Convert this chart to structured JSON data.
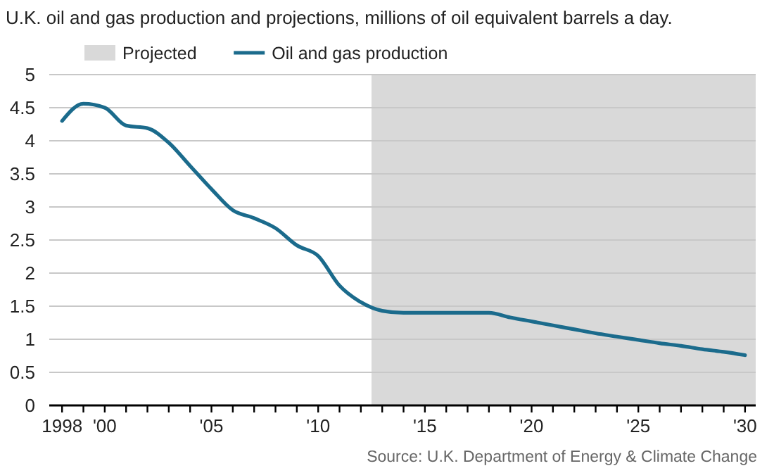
{
  "chart_data": {
    "type": "line",
    "title": "U.K. oil and gas production and projections, millions of oil equivalent barrels a day.",
    "x": [
      1998,
      1999,
      2000,
      2001,
      2002,
      2003,
      2004,
      2005,
      2006,
      2007,
      2008,
      2009,
      2010,
      2011,
      2012,
      2013,
      2014,
      2015,
      2016,
      2017,
      2018,
      2019,
      2020,
      2021,
      2022,
      2023,
      2024,
      2025,
      2026,
      2027,
      2028,
      2029,
      2030
    ],
    "series": [
      {
        "name": "Oil and gas production",
        "color": "#1b6b8c",
        "values": [
          4.3,
          4.56,
          4.5,
          4.23,
          4.19,
          3.97,
          3.62,
          3.27,
          2.95,
          2.83,
          2.68,
          2.42,
          2.26,
          1.81,
          1.56,
          1.43,
          1.4,
          1.4,
          1.4,
          1.4,
          1.4,
          1.33,
          1.27,
          1.21,
          1.15,
          1.09,
          1.04,
          0.99,
          0.94,
          0.9,
          0.85,
          0.81,
          0.76
        ]
      }
    ],
    "bands": [
      {
        "axis": "x",
        "from": 2012.5,
        "to": 2030.5,
        "label": "Projected",
        "color": "#d9d9d9"
      }
    ],
    "xlim": [
      1997.4,
      2030.5
    ],
    "xticks": [
      {
        "value": 1998,
        "label": "1998"
      },
      {
        "value": 1999,
        "label": null
      },
      {
        "value": 2000,
        "label": "'00"
      },
      {
        "value": 2001,
        "label": null
      },
      {
        "value": 2002,
        "label": null
      },
      {
        "value": 2003,
        "label": null
      },
      {
        "value": 2004,
        "label": null
      },
      {
        "value": 2005,
        "label": "'05"
      },
      {
        "value": 2006,
        "label": null
      },
      {
        "value": 2007,
        "label": null
      },
      {
        "value": 2008,
        "label": null
      },
      {
        "value": 2009,
        "label": null
      },
      {
        "value": 2010,
        "label": "'10"
      },
      {
        "value": 2011,
        "label": null
      },
      {
        "value": 2012,
        "label": null
      },
      {
        "value": 2013,
        "label": null
      },
      {
        "value": 2014,
        "label": null
      },
      {
        "value": 2015,
        "label": "'15"
      },
      {
        "value": 2016,
        "label": null
      },
      {
        "value": 2017,
        "label": null
      },
      {
        "value": 2018,
        "label": null
      },
      {
        "value": 2019,
        "label": null
      },
      {
        "value": 2020,
        "label": "'20"
      },
      {
        "value": 2021,
        "label": null
      },
      {
        "value": 2022,
        "label": null
      },
      {
        "value": 2023,
        "label": null
      },
      {
        "value": 2024,
        "label": null
      },
      {
        "value": 2025,
        "label": "'25"
      },
      {
        "value": 2026,
        "label": null
      },
      {
        "value": 2027,
        "label": null
      },
      {
        "value": 2028,
        "label": null
      },
      {
        "value": 2029,
        "label": null
      },
      {
        "value": 2030,
        "label": "'30"
      }
    ],
    "ylim": [
      0,
      5
    ],
    "yticks": [
      0,
      0.5,
      1,
      1.5,
      2,
      2.5,
      3,
      3.5,
      4,
      4.5,
      5
    ],
    "grid": "y",
    "legend": "top left",
    "marker": "none",
    "line_style": "solid",
    "annotations": [
      "Source: U.K. Department of Energy & Climate Change"
    ]
  }
}
